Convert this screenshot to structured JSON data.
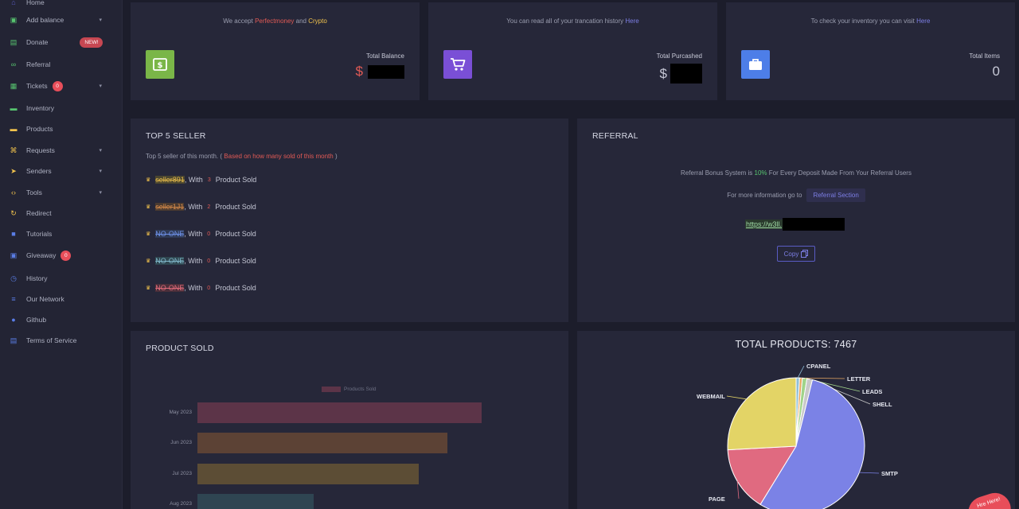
{
  "sidebar": {
    "items": [
      {
        "label": "Home",
        "icon": "home-icon",
        "color": "#5a5cc4"
      },
      {
        "label": "Add balance",
        "icon": "wallet-icon",
        "color": "#57c46f",
        "chevron": true
      },
      {
        "label": "Donate",
        "icon": "gift-icon",
        "color": "#57c46f",
        "badge": "NEW!"
      },
      {
        "label": "Referral",
        "icon": "link-icon",
        "color": "#57c46f"
      },
      {
        "label": "Tickets",
        "icon": "ticket-icon",
        "color": "#57c46f",
        "badge": "0",
        "chevron": true
      },
      {
        "label": "Inventory",
        "icon": "cart-icon",
        "color": "#57c46f"
      },
      {
        "label": "Products",
        "icon": "shop-icon",
        "color": "#f2c34d"
      },
      {
        "label": "Requests",
        "icon": "request-icon",
        "color": "#f2c34d",
        "chevron": true
      },
      {
        "label": "Senders",
        "icon": "send-icon",
        "color": "#f2c34d",
        "chevron": true
      },
      {
        "label": "Tools",
        "icon": "code-icon",
        "color": "#f2c34d",
        "chevron": true
      },
      {
        "label": "Redirect",
        "icon": "redirect-icon",
        "color": "#f2c34d"
      },
      {
        "label": "Tutorials",
        "icon": "video-icon",
        "color": "#5a7de6"
      },
      {
        "label": "Giveaway",
        "icon": "gift-box-icon",
        "color": "#5a7de6",
        "badge": "0"
      },
      {
        "label": "History",
        "icon": "history-icon",
        "color": "#5a7de6"
      },
      {
        "label": "Our Network",
        "icon": "server-icon",
        "color": "#5a7de6"
      },
      {
        "label": "Github",
        "icon": "github-icon",
        "color": "#5a7de6"
      },
      {
        "label": "Terms of Service",
        "icon": "document-icon",
        "color": "#5a7de6"
      }
    ]
  },
  "stats": {
    "balance": {
      "top_prefix": "We accept ",
      "link1": "Perfectmoney",
      "mid": " and ",
      "link2": "Crypto",
      "label": "Total Balance",
      "currency": "$",
      "icon": "money-icon",
      "icon_color": "#7ab648"
    },
    "purchased": {
      "top_prefix": "You can read all of your trancation history ",
      "link": "Here",
      "label": "Total Purcashed",
      "currency": "$",
      "icon": "cart-icon",
      "icon_color": "#7a4fd6"
    },
    "items": {
      "top_prefix": "To check your inventory you can visit ",
      "link": "Here",
      "label": "Total Items",
      "value": "0",
      "icon": "briefcase-icon",
      "icon_color": "#4d7ee8"
    }
  },
  "top_seller": {
    "title": "TOP 5 SELLER",
    "subtitle_prefix": "Top 5 seller of this month. (",
    "subtitle_highlight": "Based on how many sold of this month",
    "subtitle_suffix": ")",
    "rows": [
      {
        "name": "seller891",
        "with": ", With",
        "count": "3",
        "suffix": "Product Sold",
        "color": "#e3b84a",
        "bg": "#4a4530"
      },
      {
        "name": "seller1J1",
        "with": ", With",
        "count": "2",
        "suffix": "Product Sold",
        "color": "#d68a4a",
        "bg": "#4a3a30"
      },
      {
        "name": "NO-ONE",
        "with": ", With",
        "count": "0",
        "suffix": "Product Sold",
        "color": "#6d8fe6",
        "bg": "#2f3a55"
      },
      {
        "name": "NO-ONE",
        "with": ", With",
        "count": "0",
        "suffix": "Product Sold",
        "color": "#7fb6c9",
        "bg": "#2f4650"
      },
      {
        "name": "NO-ONE",
        "with": ", With",
        "count": "0",
        "suffix": "Product Sold",
        "color": "#e06a7a",
        "bg": "#4a2f3a"
      }
    ]
  },
  "referral": {
    "title": "REFERRAL",
    "line1_prefix": "Referral Bonus System is ",
    "line1_pct": "10%",
    "line1_suffix": " For Every Deposit Made From Your Referral Users",
    "line2": "For more information go to",
    "section_button": "Referral Section",
    "url": "https://w3ll.",
    "copy": "Copy"
  },
  "product_sold": {
    "title": "PRODUCT SOLD"
  },
  "pie": {
    "title": "TOTAL PRODUCTS: 7467"
  },
  "help_label": "Hre Here!",
  "chart_data": [
    {
      "type": "bar",
      "orientation": "horizontal",
      "legend": [
        "Products Sold"
      ],
      "categories": [
        "May 2023",
        "Jun 2023",
        "Jul 2023",
        "Aug 2023"
      ],
      "series": [
        {
          "name": "Products Sold",
          "values": [
            100,
            88,
            78,
            41
          ]
        }
      ],
      "colors": [
        "#5c3448",
        "#5c4235",
        "#5c4d35",
        "#2f4552"
      ]
    },
    {
      "type": "pie",
      "title": "TOTAL PRODUCTS: 7467",
      "labels": [
        "SMTP",
        "PAGE",
        "WEBMAIL",
        "CPANEL",
        "LETTER",
        "LEADS",
        "SHELL"
      ],
      "values": [
        4100,
        1150,
        1930,
        60,
        50,
        80,
        97
      ],
      "colors": [
        "#7b82e6",
        "#e06a80",
        "#e3d466",
        "#8fbfd9",
        "#e8a862",
        "#a0d48a",
        "#c9c9c9"
      ]
    }
  ]
}
